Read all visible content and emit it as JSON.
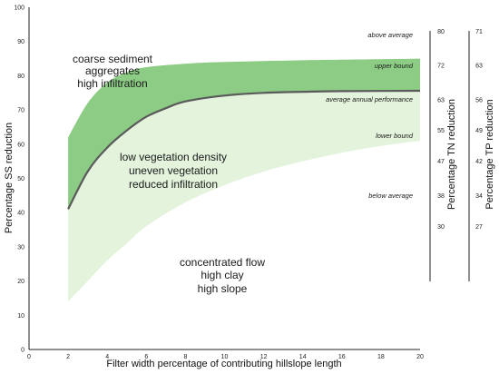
{
  "chart_data": {
    "type": "area",
    "xlabel": "Filter width percentage of contributing hillslope length",
    "ylabel": "Percentage SS reduction",
    "xlim": [
      0,
      20
    ],
    "ylim": [
      0,
      100
    ],
    "x_ticks": [
      "0",
      "2",
      "4",
      "6",
      "8",
      "10",
      "12",
      "14",
      "16",
      "18",
      "20"
    ],
    "y_ticks": [
      "0",
      "10",
      "20",
      "30",
      "40",
      "50",
      "60",
      "70",
      "80",
      "90",
      "100"
    ],
    "grid": false,
    "series": [
      {
        "key": "upper",
        "values": [
          {
            "x": 2,
            "y": 62
          },
          {
            "x": 3,
            "y": 72
          },
          {
            "x": 4,
            "y": 78
          },
          {
            "x": 5,
            "y": 81
          },
          {
            "x": 6,
            "y": 82.5
          },
          {
            "x": 8,
            "y": 83.5
          },
          {
            "x": 10,
            "y": 84
          },
          {
            "x": 14,
            "y": 84.5
          },
          {
            "x": 20,
            "y": 85
          }
        ]
      },
      {
        "key": "average",
        "values": [
          {
            "x": 2,
            "y": 41
          },
          {
            "x": 3,
            "y": 52
          },
          {
            "x": 4,
            "y": 59
          },
          {
            "x": 5,
            "y": 64
          },
          {
            "x": 6,
            "y": 68
          },
          {
            "x": 7,
            "y": 70.5
          },
          {
            "x": 8,
            "y": 72.5
          },
          {
            "x": 10,
            "y": 74.2
          },
          {
            "x": 12,
            "y": 75
          },
          {
            "x": 14,
            "y": 75.3
          },
          {
            "x": 16,
            "y": 75.5
          },
          {
            "x": 20,
            "y": 75.6
          }
        ]
      },
      {
        "key": "lower",
        "values": [
          {
            "x": 2,
            "y": 14
          },
          {
            "x": 3,
            "y": 20
          },
          {
            "x": 4,
            "y": 26
          },
          {
            "x": 5,
            "y": 31
          },
          {
            "x": 6,
            "y": 36
          },
          {
            "x": 8,
            "y": 43
          },
          {
            "x": 10,
            "y": 48
          },
          {
            "x": 12,
            "y": 52
          },
          {
            "x": 14,
            "y": 55
          },
          {
            "x": 16,
            "y": 57.5
          },
          {
            "x": 18,
            "y": 59.5
          },
          {
            "x": 20,
            "y": 61
          }
        ]
      }
    ],
    "colors": {
      "upper_band": "#8ccc84",
      "lower_band": "#e3f3dc",
      "average_line": "#5a5a5a"
    },
    "secondary_axes": [
      {
        "label": "Percentage TN reduction",
        "ticks": [
          {
            "y": 93,
            "label": "80"
          },
          {
            "y": 83,
            "label": "72"
          },
          {
            "y": 73,
            "label": "63"
          },
          {
            "y": 64,
            "label": "55"
          },
          {
            "y": 55,
            "label": "47"
          },
          {
            "y": 45,
            "label": "38"
          },
          {
            "y": 36,
            "label": "30"
          }
        ]
      },
      {
        "label": "Percentage TP reduction",
        "ticks": [
          {
            "y": 93,
            "label": "71"
          },
          {
            "y": 83,
            "label": "63"
          },
          {
            "y": 73,
            "label": "56"
          },
          {
            "y": 64,
            "label": "49"
          },
          {
            "y": 55,
            "label": "42"
          },
          {
            "y": 45,
            "label": "34"
          },
          {
            "y": 36,
            "label": "27"
          }
        ]
      }
    ],
    "annotations": {
      "region_top": [
        "coarse sediment",
        "aggregates",
        "high infiltration"
      ],
      "region_mid": [
        "low vegetation density",
        "uneven vegetation",
        "reduced infiltration"
      ],
      "region_low": [
        "concentrated flow",
        "high clay",
        "high slope"
      ],
      "above_average": "above average",
      "upper_bound": "upper bound",
      "average_annual_performance": "average annual performance",
      "lower_bound": "lower bound",
      "below_average": "below average"
    }
  }
}
